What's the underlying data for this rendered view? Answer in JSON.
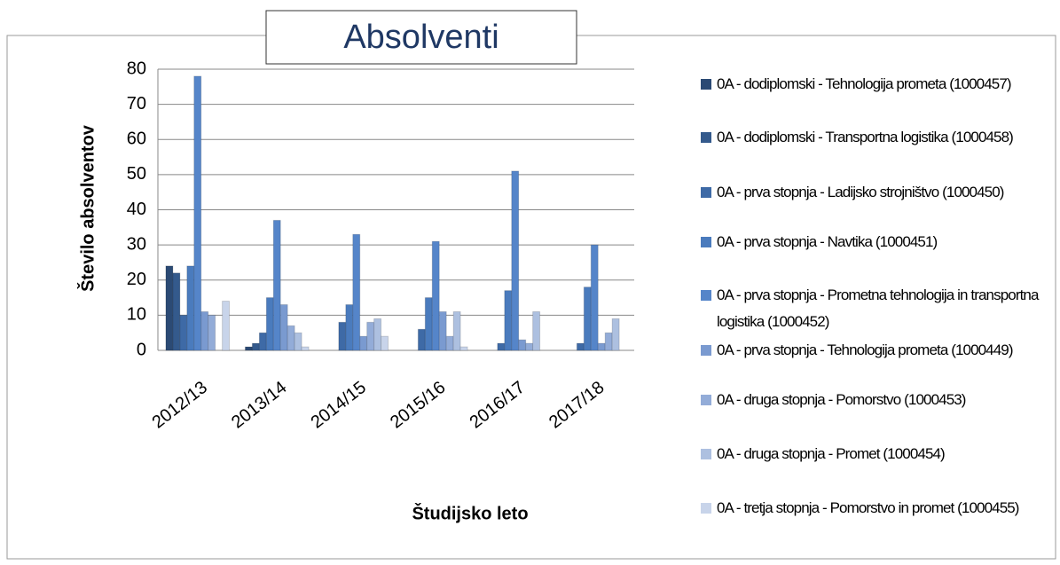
{
  "chart_data": {
    "type": "bar",
    "title": "Absolventi",
    "x_label": "Študijsko leto",
    "y_label": "Število absolventov",
    "categories": [
      "2012/13",
      "2013/14",
      "2014/15",
      "2015/16",
      "2016/17",
      "2017/18"
    ],
    "series": [
      {
        "name": "0A - dodiplomski - Tehnologija prometa (1000457)",
        "color": "#2b4a74",
        "values": [
          24,
          1,
          0,
          0,
          0,
          0
        ]
      },
      {
        "name": "0A - dodiplomski - Transportna logistika (1000458)",
        "color": "#345a8c",
        "values": [
          22,
          2,
          0,
          0,
          0,
          0
        ]
      },
      {
        "name": "0A - prva stopnja - Ladijsko strojništvo (1000450)",
        "color": "#3e6aa6",
        "values": [
          10,
          5,
          8,
          6,
          2,
          2
        ]
      },
      {
        "name": "0A - prva stopnja - Navtika (1000451)",
        "color": "#4a7bbd",
        "values": [
          24,
          15,
          13,
          15,
          17,
          18
        ]
      },
      {
        "name": "0A - prva stopnja - Prometna tehnologija in transportna logistika (1000452)",
        "color": "#5585c9",
        "values": [
          78,
          37,
          33,
          31,
          51,
          30
        ]
      },
      {
        "name": "0A - prva stopnja - Tehnologija prometa (1000449)",
        "color": "#7a9ad0",
        "values": [
          11,
          13,
          4,
          11,
          3,
          2
        ]
      },
      {
        "name": "0A - druga stopnja - Pomorstvo (1000453)",
        "color": "#93acd8",
        "values": [
          10,
          7,
          8,
          4,
          2,
          5
        ]
      },
      {
        "name": "0A - druga stopnja - Promet (1000454)",
        "color": "#adc0e0",
        "values": [
          0,
          5,
          9,
          11,
          11,
          9
        ]
      },
      {
        "name": "0A - tretja stopnja - Pomorstvo in promet (1000455)",
        "color": "#c8d4ea",
        "values": [
          14,
          1,
          4,
          1,
          0,
          0
        ]
      }
    ],
    "ylim": [
      0,
      80
    ],
    "yticks": [
      0,
      10,
      20,
      30,
      40,
      50,
      60,
      70,
      80
    ],
    "grid": true,
    "legend": "right"
  }
}
